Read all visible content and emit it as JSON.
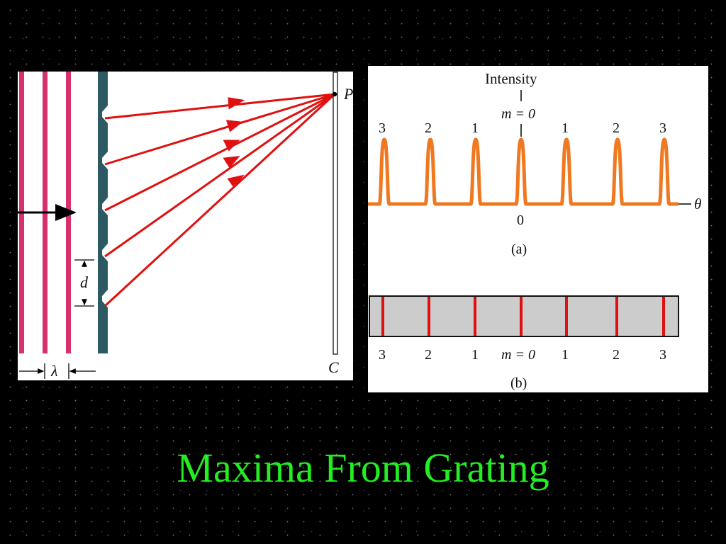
{
  "title": "Maxima From Grating",
  "left_diagram": {
    "point_label": "P",
    "screen_label": "C",
    "spacing_label": "d",
    "wavelength_label": "λ",
    "colors": {
      "wavefront": "#d6306f",
      "grating": "#2d5a62",
      "ray": "#e01010"
    }
  },
  "intensity_plot": {
    "axis_label": "Intensity",
    "central_label": "m = 0",
    "order_labels": [
      "3",
      "2",
      "1",
      "1",
      "2",
      "3"
    ],
    "origin_label": "0",
    "theta_label": "θ",
    "caption": "(a)",
    "curve_color": "#f07820"
  },
  "fringe_pattern": {
    "labels": [
      "3",
      "2",
      "1",
      "m = 0",
      "1",
      "2",
      "3"
    ],
    "caption": "(b)",
    "band_color": "#cccccc",
    "line_color": "#e01010"
  }
}
